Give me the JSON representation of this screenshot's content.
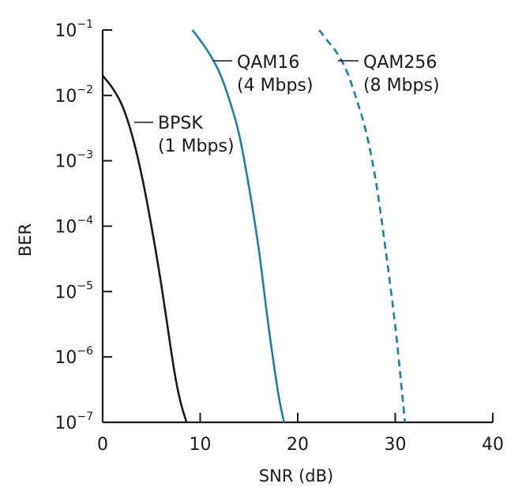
{
  "chart_data": {
    "type": "line",
    "title": "",
    "xlabel": "SNR (dB)",
    "ylabel": "BER",
    "xlim": [
      0,
      40
    ],
    "ylim": [
      1e-07,
      0.1
    ],
    "yscale": "log",
    "grid": false,
    "x_ticks": [
      0,
      10,
      20,
      30,
      40
    ],
    "x_tick_labels": [
      "0",
      "10",
      "20",
      "30",
      "40"
    ],
    "y_ticks": [
      {
        "base": "10",
        "exp": "−1",
        "value": 0.1
      },
      {
        "base": "10",
        "exp": "−2",
        "value": 0.01
      },
      {
        "base": "10",
        "exp": "−3",
        "value": 0.001
      },
      {
        "base": "10",
        "exp": "−4",
        "value": 0.0001
      },
      {
        "base": "10",
        "exp": "−5",
        "value": 1e-05
      },
      {
        "base": "10",
        "exp": "−6",
        "value": 1e-06
      },
      {
        "base": "10",
        "exp": "−7",
        "value": 1e-07
      }
    ],
    "series": [
      {
        "name": "BPSK",
        "label_lines": [
          "BPSK",
          "(1 Mbps)"
        ],
        "color": "#1a1a1a",
        "dashed": false,
        "x": [
          0,
          1,
          2,
          3,
          4,
          5,
          6,
          7,
          7.5,
          8,
          8.6
        ],
        "y": [
          0.02,
          0.013,
          0.007,
          0.0025,
          0.0006,
          0.0001,
          1.3e-05,
          1.3e-06,
          4.5e-07,
          2e-07,
          1e-07
        ]
      },
      {
        "name": "QAM16",
        "label_lines": [
          "QAM16",
          "(4 Mbps)"
        ],
        "color": "#1f7fa8",
        "dashed": false,
        "x": [
          9.2,
          10,
          11,
          12,
          13,
          14,
          15,
          16,
          17,
          18,
          18.6
        ],
        "y": [
          0.1,
          0.07,
          0.042,
          0.022,
          0.0085,
          0.0025,
          0.0004,
          4.5e-05,
          3e-06,
          2.8e-07,
          1e-07
        ]
      },
      {
        "name": "QAM256",
        "label_lines": [
          "QAM256",
          "(8 Mbps)"
        ],
        "color": "#1f7fa8",
        "dashed": true,
        "x": [
          22.2,
          23,
          24,
          25,
          26,
          27,
          28,
          29,
          30,
          30.6,
          31
        ],
        "y": [
          0.1,
          0.07,
          0.045,
          0.024,
          0.009,
          0.0028,
          0.0005,
          4.5e-05,
          3e-06,
          4e-07,
          1e-07
        ]
      }
    ]
  }
}
